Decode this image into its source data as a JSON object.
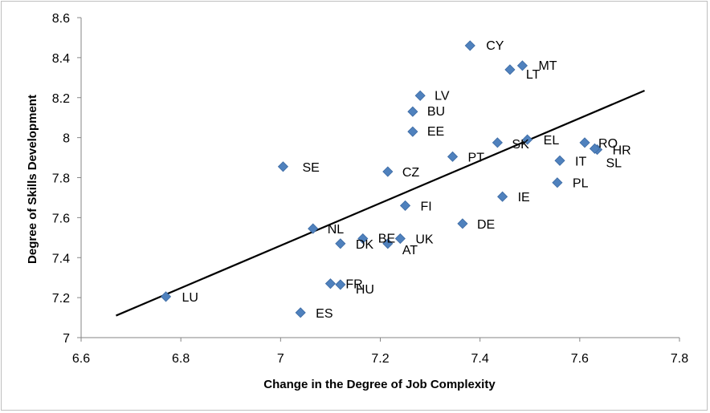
{
  "chart_data": {
    "type": "scatter",
    "title": "",
    "xlabel": "Change in the Degree of Job Complexity",
    "ylabel": "Degree of Skills Development",
    "xlim": [
      6.6,
      7.8
    ],
    "ylim": [
      7,
      8.6
    ],
    "xticks": [
      "6.6",
      "6.8",
      "7",
      "7.2",
      "7.4",
      "7.6",
      "7.8"
    ],
    "yticks": [
      "7",
      "7.2",
      "7.4",
      "7.6",
      "7.8",
      "8",
      "8.2",
      "8.4",
      "8.6"
    ],
    "grid": false,
    "legend": "none",
    "marker_color": "#4f81bd",
    "trendline": {
      "x": [
        6.67,
        7.73
      ],
      "y": [
        7.11,
        8.235
      ],
      "color": "#000000"
    },
    "points": [
      {
        "label": "CY",
        "x": 7.38,
        "y": 8.46
      },
      {
        "label": "MT",
        "x": 7.485,
        "y": 8.36
      },
      {
        "label": "LT",
        "x": 7.46,
        "y": 8.34
      },
      {
        "label": "LV",
        "x": 7.28,
        "y": 8.21
      },
      {
        "label": "BU",
        "x": 7.265,
        "y": 8.13
      },
      {
        "label": "EE",
        "x": 7.265,
        "y": 8.03
      },
      {
        "label": "SK",
        "x": 7.435,
        "y": 7.975
      },
      {
        "label": "EL",
        "x": 7.495,
        "y": 7.99
      },
      {
        "label": "RO",
        "x": 7.61,
        "y": 7.975
      },
      {
        "label": "HR",
        "x": 7.635,
        "y": 7.94
      },
      {
        "label": "SL",
        "x": 7.63,
        "y": 7.945
      },
      {
        "label": "IT",
        "x": 7.56,
        "y": 7.885
      },
      {
        "label": "PT",
        "x": 7.345,
        "y": 7.905
      },
      {
        "label": "SE",
        "x": 7.005,
        "y": 7.855
      },
      {
        "label": "CZ",
        "x": 7.215,
        "y": 7.83
      },
      {
        "label": "PL",
        "x": 7.555,
        "y": 7.775
      },
      {
        "label": "IE",
        "x": 7.445,
        "y": 7.705
      },
      {
        "label": "FI",
        "x": 7.25,
        "y": 7.66
      },
      {
        "label": "DE",
        "x": 7.365,
        "y": 7.57
      },
      {
        "label": "NL",
        "x": 7.065,
        "y": 7.545
      },
      {
        "label": "BE",
        "x": 7.165,
        "y": 7.495
      },
      {
        "label": "UK",
        "x": 7.24,
        "y": 7.495
      },
      {
        "label": "DK",
        "x": 7.12,
        "y": 7.47
      },
      {
        "label": "AT",
        "x": 7.215,
        "y": 7.47
      },
      {
        "label": "FR",
        "x": 7.1,
        "y": 7.27
      },
      {
        "label": "HU",
        "x": 7.12,
        "y": 7.265
      },
      {
        "label": "LU",
        "x": 6.77,
        "y": 7.205
      },
      {
        "label": "ES",
        "x": 7.04,
        "y": 7.125
      }
    ]
  }
}
